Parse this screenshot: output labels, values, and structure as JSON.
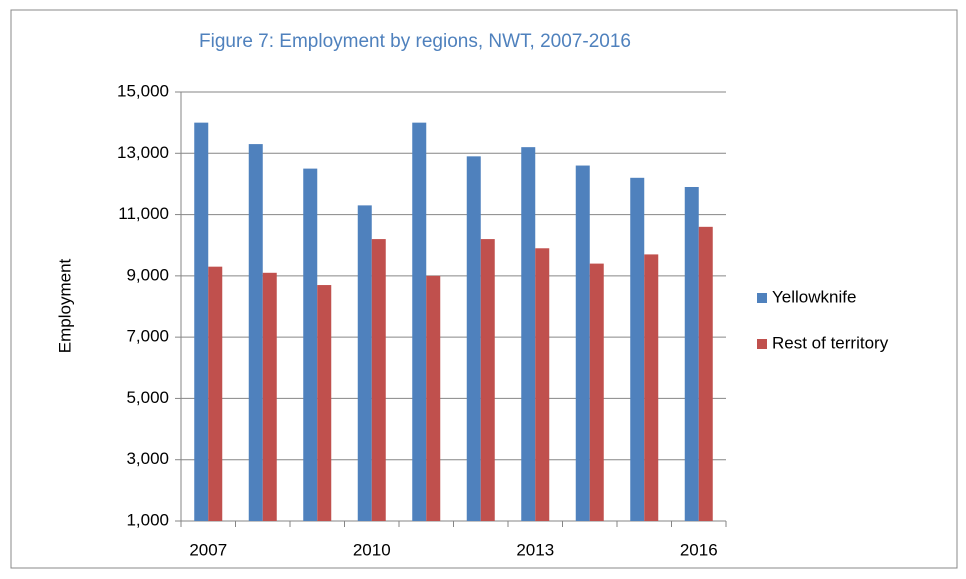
{
  "chart_data": {
    "type": "bar",
    "title": "Figure 7: Employment by regions, NWT, 2007-2016",
    "y_label": "Employment",
    "categories": [
      "2007",
      null,
      null,
      "2010",
      null,
      null,
      "2013",
      null,
      null,
      "2016"
    ],
    "series": [
      {
        "name": "Yellowknife",
        "color": "#4f81bd",
        "values": [
          14000,
          13300,
          12500,
          11300,
          14000,
          12900,
          13200,
          12600,
          12200,
          11900
        ]
      },
      {
        "name": "Rest of territory",
        "color": "#c0504d",
        "values": [
          9300,
          9100,
          8700,
          10200,
          9000,
          10200,
          9900,
          9400,
          9700,
          10600
        ]
      }
    ],
    "ylim": [
      1000,
      15000
    ],
    "yticks": [
      {
        "value": 1000,
        "label": "1,000"
      },
      {
        "value": 3000,
        "label": "3,000"
      },
      {
        "value": 5000,
        "label": "5,000"
      },
      {
        "value": 7000,
        "label": "7,000"
      },
      {
        "value": 9000,
        "label": "9,000"
      },
      {
        "value": 11000,
        "label": "11,000"
      },
      {
        "value": 13000,
        "label": "13,000"
      },
      {
        "value": 15000,
        "label": "15,000"
      }
    ],
    "grid": true,
    "legend": "right"
  }
}
